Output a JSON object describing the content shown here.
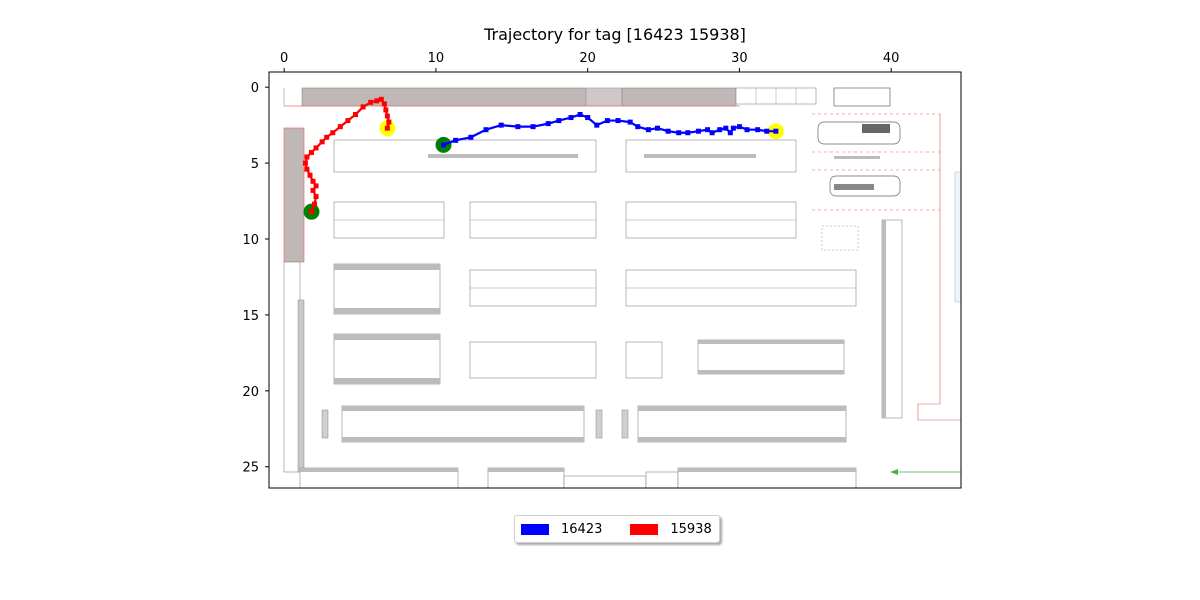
{
  "chart_data": {
    "type": "scatter",
    "title": "Trajectory for tag [16423 15938]",
    "xlabel": "",
    "ylabel": "",
    "xlim": [
      -1,
      44.6
    ],
    "ylim": [
      26.4,
      -1
    ],
    "x_axis_position": "top",
    "y_inverted": true,
    "grid": false,
    "xticks": [
      0,
      10,
      20,
      30,
      40
    ],
    "yticks": [
      0,
      5,
      10,
      15,
      20,
      25
    ],
    "background": "warehouse floor plan image",
    "legend": {
      "placement": "bottom-center",
      "columns": 2
    },
    "start_marker_color": "#008000",
    "end_marker_color": "#ffff00",
    "series": [
      {
        "name": "16423",
        "color": "#0000ff",
        "points": [
          [
            10.5,
            3.8
          ],
          [
            11.3,
            3.5
          ],
          [
            12.3,
            3.3
          ],
          [
            13.3,
            2.8
          ],
          [
            14.3,
            2.5
          ],
          [
            15.4,
            2.6
          ],
          [
            16.4,
            2.6
          ],
          [
            17.4,
            2.4
          ],
          [
            18.1,
            2.2
          ],
          [
            18.9,
            2.0
          ],
          [
            19.5,
            1.8
          ],
          [
            20.0,
            2.0
          ],
          [
            20.6,
            2.5
          ],
          [
            21.3,
            2.2
          ],
          [
            22.0,
            2.2
          ],
          [
            22.8,
            2.3
          ],
          [
            23.3,
            2.6
          ],
          [
            24.0,
            2.8
          ],
          [
            24.6,
            2.7
          ],
          [
            25.3,
            2.9
          ],
          [
            26.0,
            3.0
          ],
          [
            26.6,
            3.0
          ],
          [
            27.3,
            2.9
          ],
          [
            27.9,
            2.8
          ],
          [
            28.2,
            3.0
          ],
          [
            28.7,
            2.8
          ],
          [
            29.1,
            2.7
          ],
          [
            29.4,
            3.0
          ],
          [
            29.6,
            2.7
          ],
          [
            30.0,
            2.6
          ],
          [
            30.5,
            2.8
          ],
          [
            31.2,
            2.8
          ],
          [
            31.8,
            2.9
          ],
          [
            32.4,
            2.9
          ]
        ]
      },
      {
        "name": "15938",
        "color": "#ff0000",
        "points": [
          [
            1.8,
            8.2
          ],
          [
            2.0,
            7.7
          ],
          [
            2.1,
            7.2
          ],
          [
            1.9,
            6.8
          ],
          [
            2.1,
            6.5
          ],
          [
            1.9,
            6.2
          ],
          [
            1.7,
            5.8
          ],
          [
            1.5,
            5.4
          ],
          [
            1.4,
            5.0
          ],
          [
            1.5,
            4.6
          ],
          [
            1.8,
            4.3
          ],
          [
            2.1,
            4.0
          ],
          [
            2.5,
            3.6
          ],
          [
            2.8,
            3.3
          ],
          [
            3.2,
            3.0
          ],
          [
            3.7,
            2.6
          ],
          [
            4.2,
            2.2
          ],
          [
            4.7,
            1.8
          ],
          [
            5.2,
            1.3
          ],
          [
            5.7,
            1.0
          ],
          [
            6.1,
            0.9
          ],
          [
            6.4,
            0.8
          ],
          [
            6.6,
            1.1
          ],
          [
            6.7,
            1.5
          ],
          [
            6.8,
            1.9
          ],
          [
            6.9,
            2.3
          ],
          [
            6.8,
            2.7
          ]
        ]
      }
    ]
  }
}
